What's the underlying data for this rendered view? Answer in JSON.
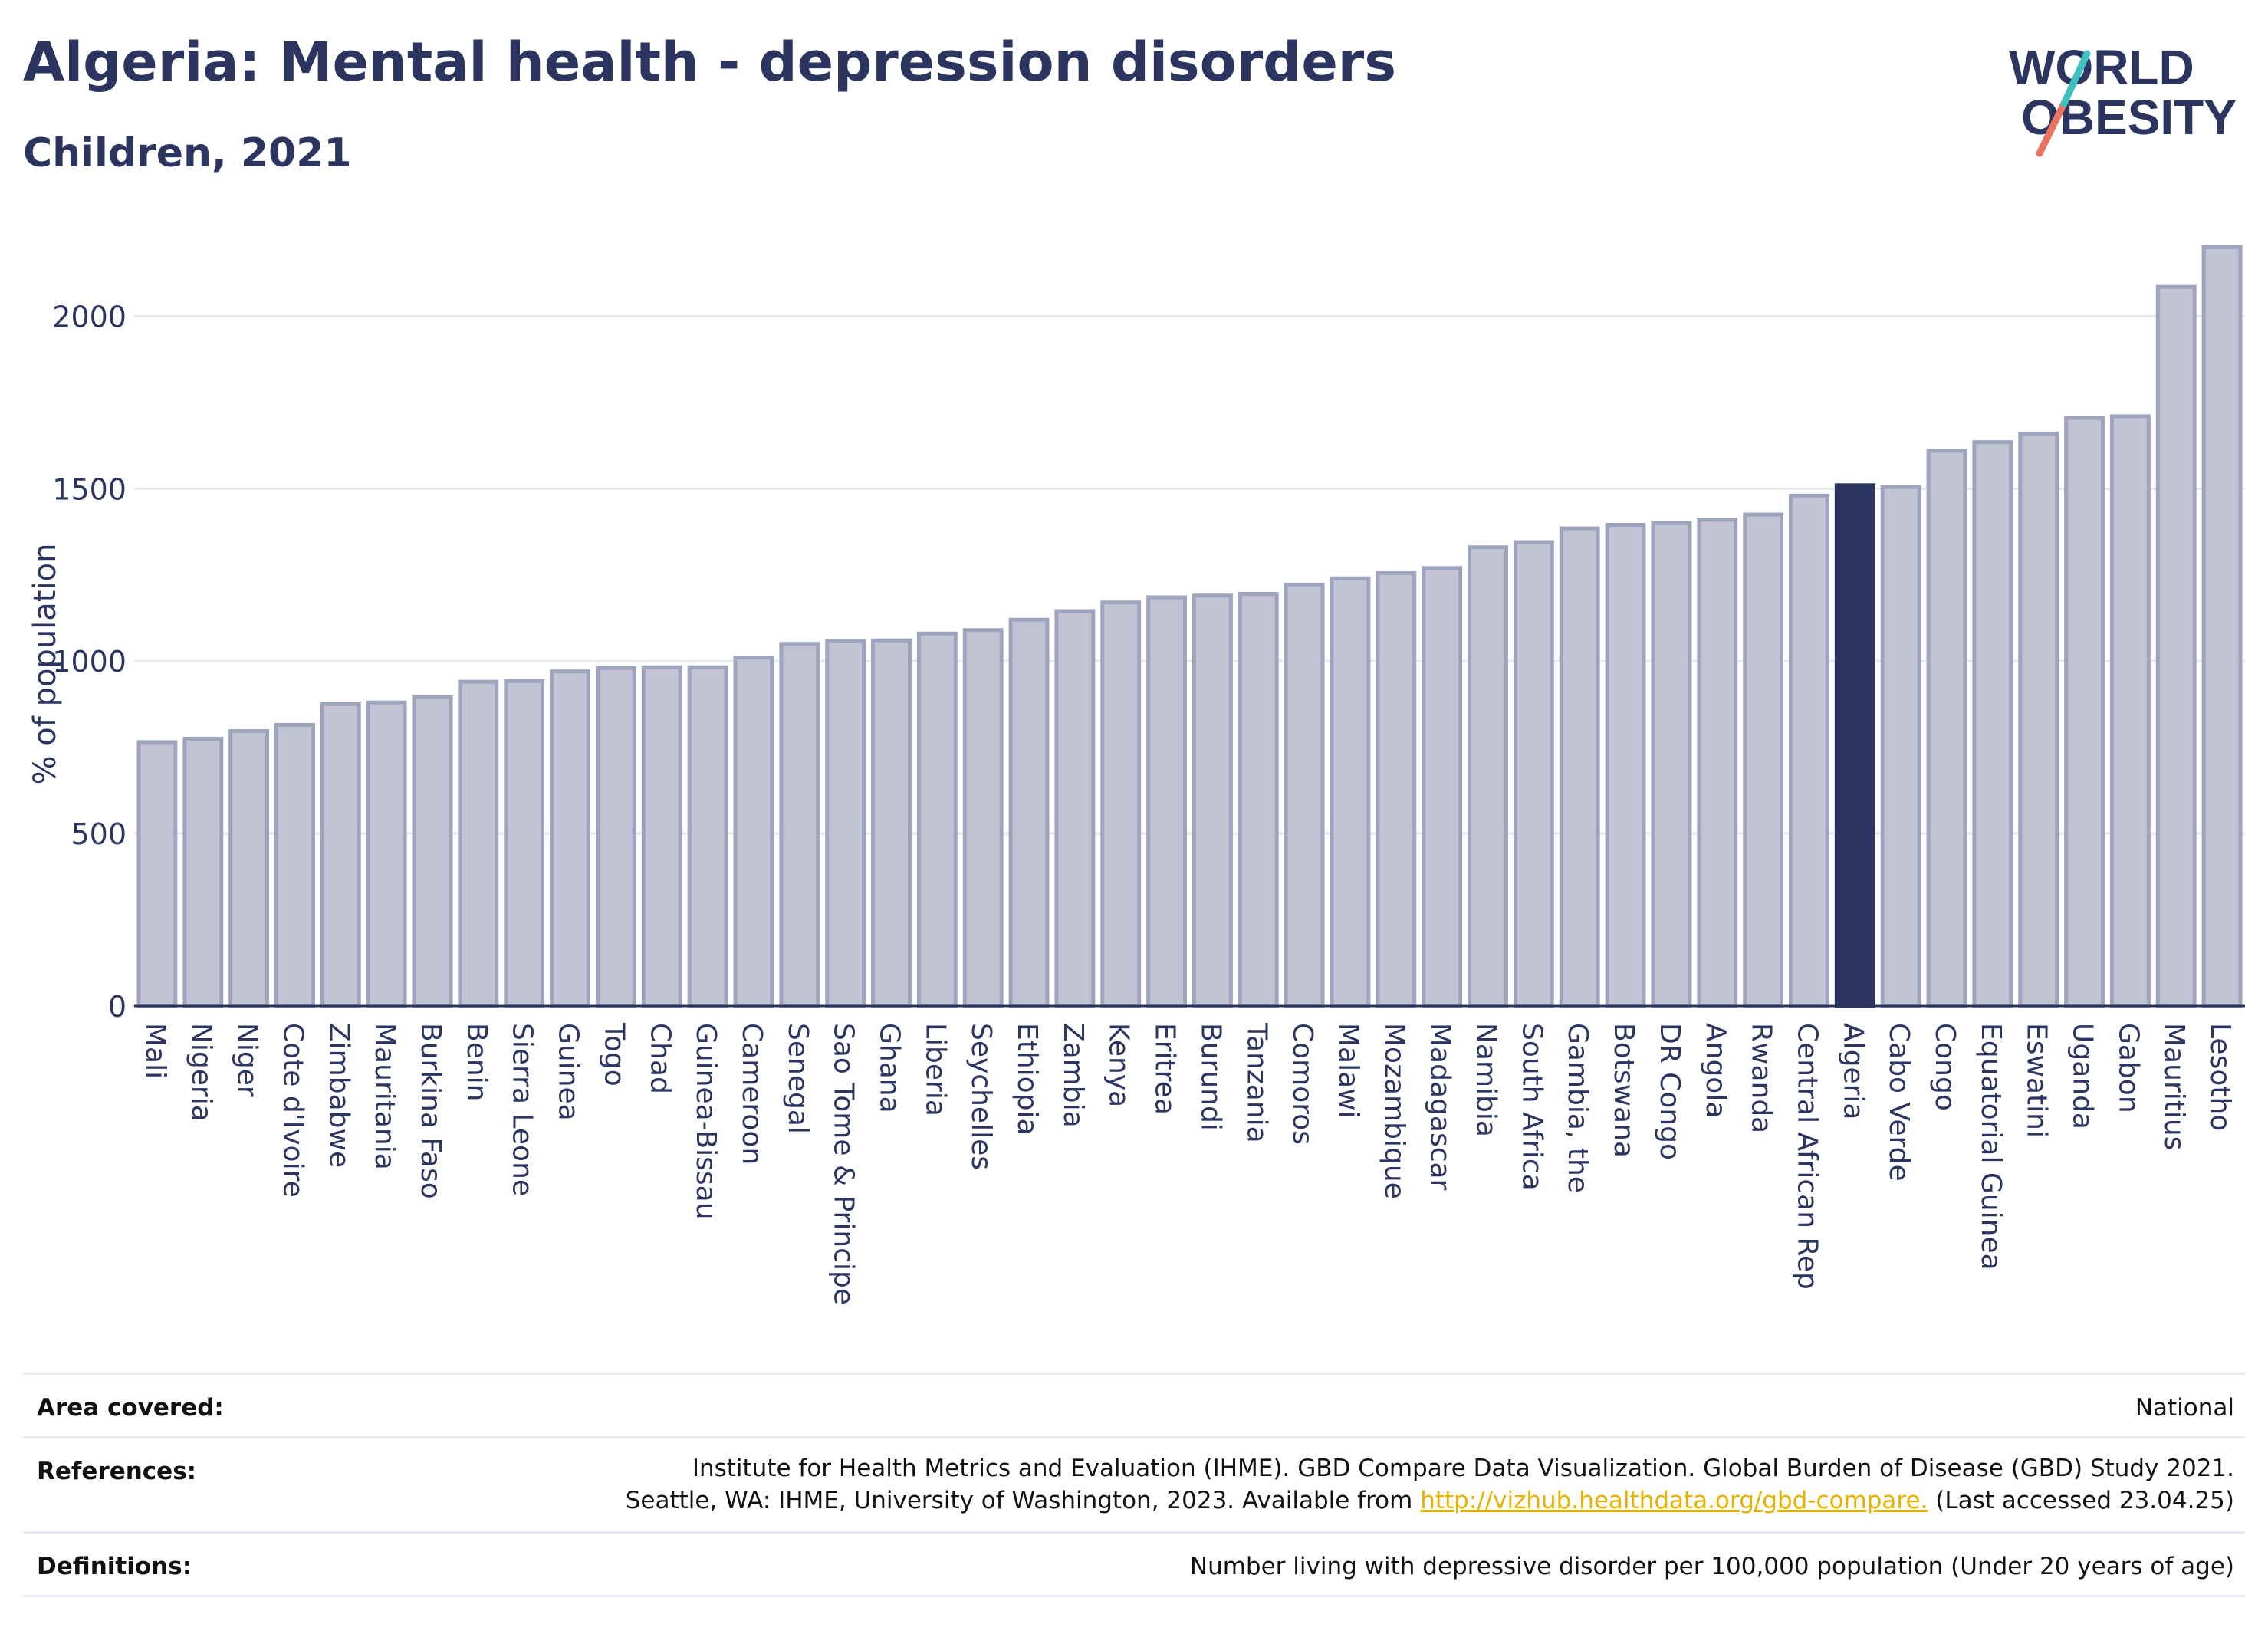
{
  "header": {
    "title": "Algeria: Mental health - depression disorders",
    "subtitle": "Children, 2021",
    "logo_line1": "WORLD",
    "logo_line2": "OBESITY"
  },
  "colors": {
    "highlight": "#2b3560",
    "bar_fill": "#c0c4d3",
    "bar_stroke": "#9ea4bd",
    "grid": "#e6e8ee",
    "logo_teal": "#3fc1c0",
    "logo_coral": "#e8735f",
    "link": "#e8b100"
  },
  "chart_data": {
    "type": "bar",
    "title": "Algeria: Mental health - depression disorders",
    "subtitle": "Children, 2021",
    "xlabel": "",
    "ylabel": "% of population",
    "ylim": [
      0,
      2250
    ],
    "yticks": [
      0,
      500,
      1000,
      1500,
      2000
    ],
    "grid": true,
    "highlight": "Algeria",
    "categories": [
      "Mali",
      "Nigeria",
      "Niger",
      "Cote d'Ivoire",
      "Zimbabwe",
      "Mauritania",
      "Burkina Faso",
      "Benin",
      "Sierra Leone",
      "Guinea",
      "Togo",
      "Chad",
      "Guinea-Bissau",
      "Cameroon",
      "Senegal",
      "Sao Tome & Principe",
      "Ghana",
      "Liberia",
      "Seychelles",
      "Ethiopia",
      "Zambia",
      "Kenya",
      "Eritrea",
      "Burundi",
      "Tanzania",
      "Comoros",
      "Malawi",
      "Mozambique",
      "Madagascar",
      "Namibia",
      "South Africa",
      "Gambia, the",
      "Botswana",
      "DR Congo",
      "Angola",
      "Rwanda",
      "Central African Rep",
      "Algeria",
      "Cabo Verde",
      "Congo",
      "Equatorial Guinea",
      "Eswatini",
      "Uganda",
      "Gabon",
      "Mauritius",
      "Lesotho"
    ],
    "values": [
      765,
      775,
      797,
      815,
      875,
      880,
      895,
      940,
      942,
      970,
      980,
      982,
      982,
      1010,
      1050,
      1058,
      1060,
      1080,
      1090,
      1120,
      1145,
      1170,
      1185,
      1190,
      1195,
      1222,
      1240,
      1255,
      1270,
      1330,
      1345,
      1385,
      1395,
      1400,
      1410,
      1425,
      1480,
      1510,
      1505,
      1610,
      1635,
      1660,
      1705,
      1710,
      2085,
      2200
    ]
  },
  "footer": {
    "area_label": "Area covered:",
    "area_value": "National",
    "references_label": "References:",
    "references_line1": "Institute for Health Metrics and Evaluation (IHME). GBD Compare Data Visualization. Global Burden of Disease (GBD) Study 2021.",
    "references_line2_pre": "Seattle, WA: IHME, University of Washington, 2023. Available from ",
    "references_link": "http://vizhub.healthdata.org/gbd-compare.",
    "references_line2_post": " (Last accessed 23.04.25)",
    "definitions_label": "Definitions:",
    "definitions_value": "Number living with depressive disorder per 100,000 population (Under 20 years of age)"
  }
}
